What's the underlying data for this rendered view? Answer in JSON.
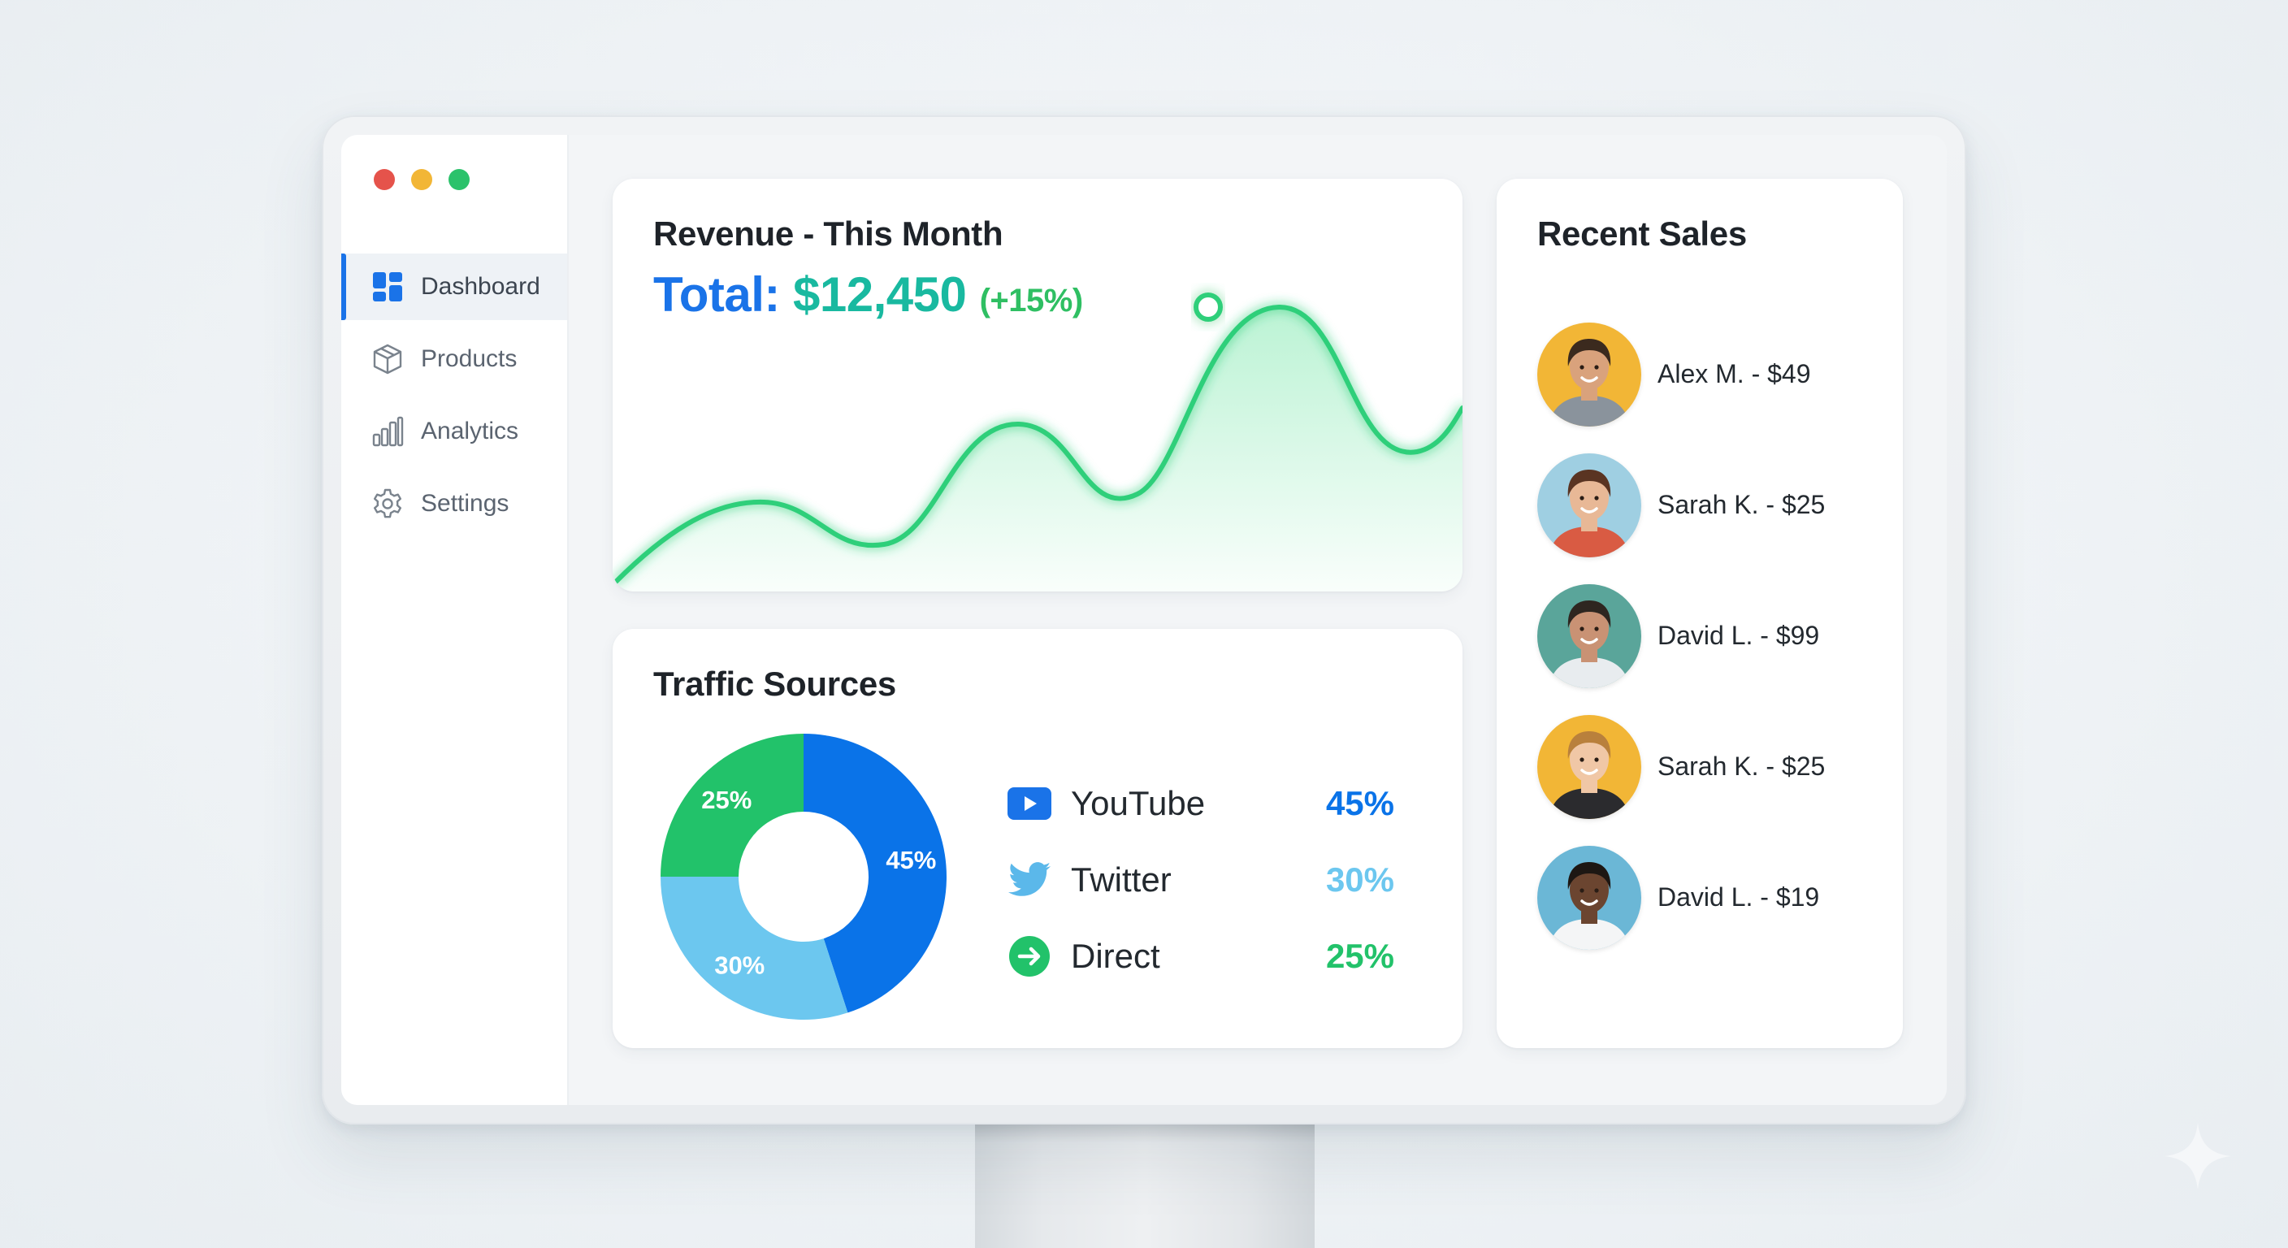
{
  "window": {
    "controls": {
      "close_color": "#e5534b",
      "minimize_color": "#f2b636",
      "maximize_color": "#2bc26b"
    }
  },
  "sidebar": {
    "items": [
      {
        "label": "Dashboard",
        "icon": "dashboard-icon",
        "active": true
      },
      {
        "label": "Products",
        "icon": "box-icon",
        "active": false
      },
      {
        "label": "Analytics",
        "icon": "bar-chart-icon",
        "active": false
      },
      {
        "label": "Settings",
        "icon": "gear-icon",
        "active": false
      }
    ],
    "accent_color": "#1a73e8"
  },
  "revenue": {
    "title": "Revenue - This Month",
    "total_label": "Total: ",
    "total_value": "$12,450",
    "change": "(+15%)",
    "line_color": "#2fcf7a"
  },
  "traffic": {
    "title": "Traffic Sources",
    "sources": [
      {
        "name": "YouTube",
        "percent": "45%",
        "icon": "youtube-icon",
        "color": "#0a73e8"
      },
      {
        "name": "Twitter",
        "percent": "30%",
        "icon": "twitter-icon",
        "color": "#6cc7ef"
      },
      {
        "name": "Direct",
        "percent": "25%",
        "icon": "direct-arrow-icon",
        "color": "#22c26a"
      }
    ]
  },
  "chart_data": {
    "type": "pie",
    "categories": [
      "YouTube",
      "Twitter",
      "Direct"
    ],
    "values": [
      45,
      30,
      25
    ],
    "labels": [
      "45%",
      "30%",
      "25%"
    ],
    "colors": [
      "#0a73e8",
      "#6cc7ef",
      "#22c26a"
    ]
  },
  "recent_sales": {
    "title": "Recent Sales",
    "items": [
      {
        "text": "Alex M. - $49",
        "avatar_bg": "#f2b636",
        "skin": "#d9a27c",
        "hair": "#3b2a1e",
        "shirt": "#8a939c"
      },
      {
        "text": "Sarah K. - $25",
        "avatar_bg": "#9fcfe2",
        "skin": "#e8b896",
        "hair": "#5a3422",
        "shirt": "#d95b43"
      },
      {
        "text": "David L. - $99",
        "avatar_bg": "#5aa59a",
        "skin": "#c99274",
        "hair": "#2e2620",
        "shirt": "#e8ecef"
      },
      {
        "text": "Sarah K. - $25",
        "avatar_bg": "#f2b636",
        "skin": "#f0c7a6",
        "hair": "#b9803c",
        "shirt": "#2b2b2e"
      },
      {
        "text": "David L. - $19",
        "avatar_bg": "#6bb7d6",
        "skin": "#6b4530",
        "hair": "#1d1713",
        "shirt": "#f4f5f6"
      }
    ]
  }
}
